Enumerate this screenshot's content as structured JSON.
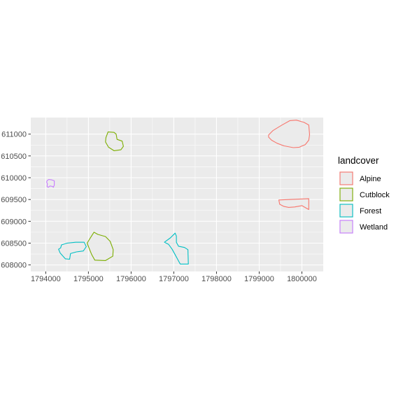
{
  "chart_data": {
    "type": "map",
    "xlim": [
      1793650,
      1800500
    ],
    "ylim": [
      607850,
      611380
    ],
    "x_ticks": [
      1794000,
      1795000,
      1796000,
      1797000,
      1798000,
      1799000,
      1800000
    ],
    "y_ticks": [
      608000,
      608500,
      609000,
      609500,
      610000,
      610500,
      611000
    ],
    "grid": true,
    "legend_position": "right",
    "legend": {
      "title": "landcover",
      "entries": [
        {
          "name": "Alpine",
          "color": "#F8766D"
        },
        {
          "name": "Cutblock",
          "color": "#7CAE00"
        },
        {
          "name": "Forest",
          "color": "#00BFC4"
        },
        {
          "name": "Wetland",
          "color": "#C77CFF"
        }
      ]
    },
    "fill_color": "#EBEBEB",
    "features": [
      {
        "landcover": "Alpine",
        "coords": [
          [
            1799220,
            610980
          ],
          [
            1799320,
            611080
          ],
          [
            1799520,
            611200
          ],
          [
            1799720,
            611310
          ],
          [
            1799870,
            611320
          ],
          [
            1800050,
            611270
          ],
          [
            1800160,
            611210
          ],
          [
            1800180,
            610990
          ],
          [
            1800160,
            610860
          ],
          [
            1800080,
            610760
          ],
          [
            1799940,
            610700
          ],
          [
            1799800,
            610690
          ],
          [
            1799580,
            610730
          ],
          [
            1799420,
            610790
          ],
          [
            1799290,
            610860
          ],
          [
            1799220,
            610930
          ]
        ]
      },
      {
        "landcover": "Alpine",
        "coords": [
          [
            1799460,
            609490
          ],
          [
            1800160,
            609520
          ],
          [
            1800160,
            609270
          ],
          [
            1800000,
            609360
          ],
          [
            1799830,
            609330
          ],
          [
            1799690,
            609320
          ],
          [
            1799580,
            609340
          ],
          [
            1799480,
            609390
          ]
        ]
      },
      {
        "landcover": "Cutblock",
        "coords": [
          [
            1795460,
            611050
          ],
          [
            1795600,
            611040
          ],
          [
            1795650,
            611000
          ],
          [
            1795670,
            610880
          ],
          [
            1795790,
            610840
          ],
          [
            1795820,
            610720
          ],
          [
            1795760,
            610640
          ],
          [
            1795600,
            610620
          ],
          [
            1795470,
            610700
          ],
          [
            1795400,
            610820
          ],
          [
            1795410,
            610920
          ]
        ]
      },
      {
        "landcover": "Cutblock",
        "coords": [
          [
            1795130,
            608750
          ],
          [
            1795220,
            608700
          ],
          [
            1795400,
            608650
          ],
          [
            1795510,
            608540
          ],
          [
            1795580,
            608350
          ],
          [
            1795570,
            608200
          ],
          [
            1795400,
            608100
          ],
          [
            1795150,
            608110
          ],
          [
            1795070,
            608250
          ],
          [
            1794970,
            608500
          ],
          [
            1795040,
            608610
          ]
        ]
      },
      {
        "landcover": "Forest",
        "coords": [
          [
            1794370,
            608460
          ],
          [
            1794500,
            608500
          ],
          [
            1794700,
            608520
          ],
          [
            1794900,
            608520
          ],
          [
            1794950,
            608420
          ],
          [
            1794880,
            608320
          ],
          [
            1794720,
            608300
          ],
          [
            1794580,
            608260
          ],
          [
            1794560,
            608130
          ],
          [
            1794460,
            608140
          ],
          [
            1794340,
            608270
          ],
          [
            1794300,
            608360
          ],
          [
            1794350,
            608390
          ]
        ]
      },
      {
        "landcover": "Forest",
        "coords": [
          [
            1796920,
            608620
          ],
          [
            1797030,
            608730
          ],
          [
            1797060,
            608660
          ],
          [
            1797060,
            608520
          ],
          [
            1797110,
            608430
          ],
          [
            1797250,
            608400
          ],
          [
            1797330,
            608350
          ],
          [
            1797340,
            608020
          ],
          [
            1797150,
            608020
          ],
          [
            1797050,
            608200
          ],
          [
            1796960,
            608360
          ],
          [
            1796880,
            608470
          ],
          [
            1796780,
            608520
          ]
        ]
      },
      {
        "landcover": "Wetland",
        "coords": [
          [
            1794030,
            609930
          ],
          [
            1794070,
            609960
          ],
          [
            1794140,
            609950
          ],
          [
            1794200,
            609930
          ],
          [
            1794200,
            609830
          ],
          [
            1794180,
            609780
          ],
          [
            1794160,
            609800
          ],
          [
            1794100,
            609810
          ],
          [
            1794060,
            609780
          ],
          [
            1794030,
            609800
          ],
          [
            1794040,
            609860
          ],
          [
            1794020,
            609900
          ]
        ]
      }
    ]
  }
}
